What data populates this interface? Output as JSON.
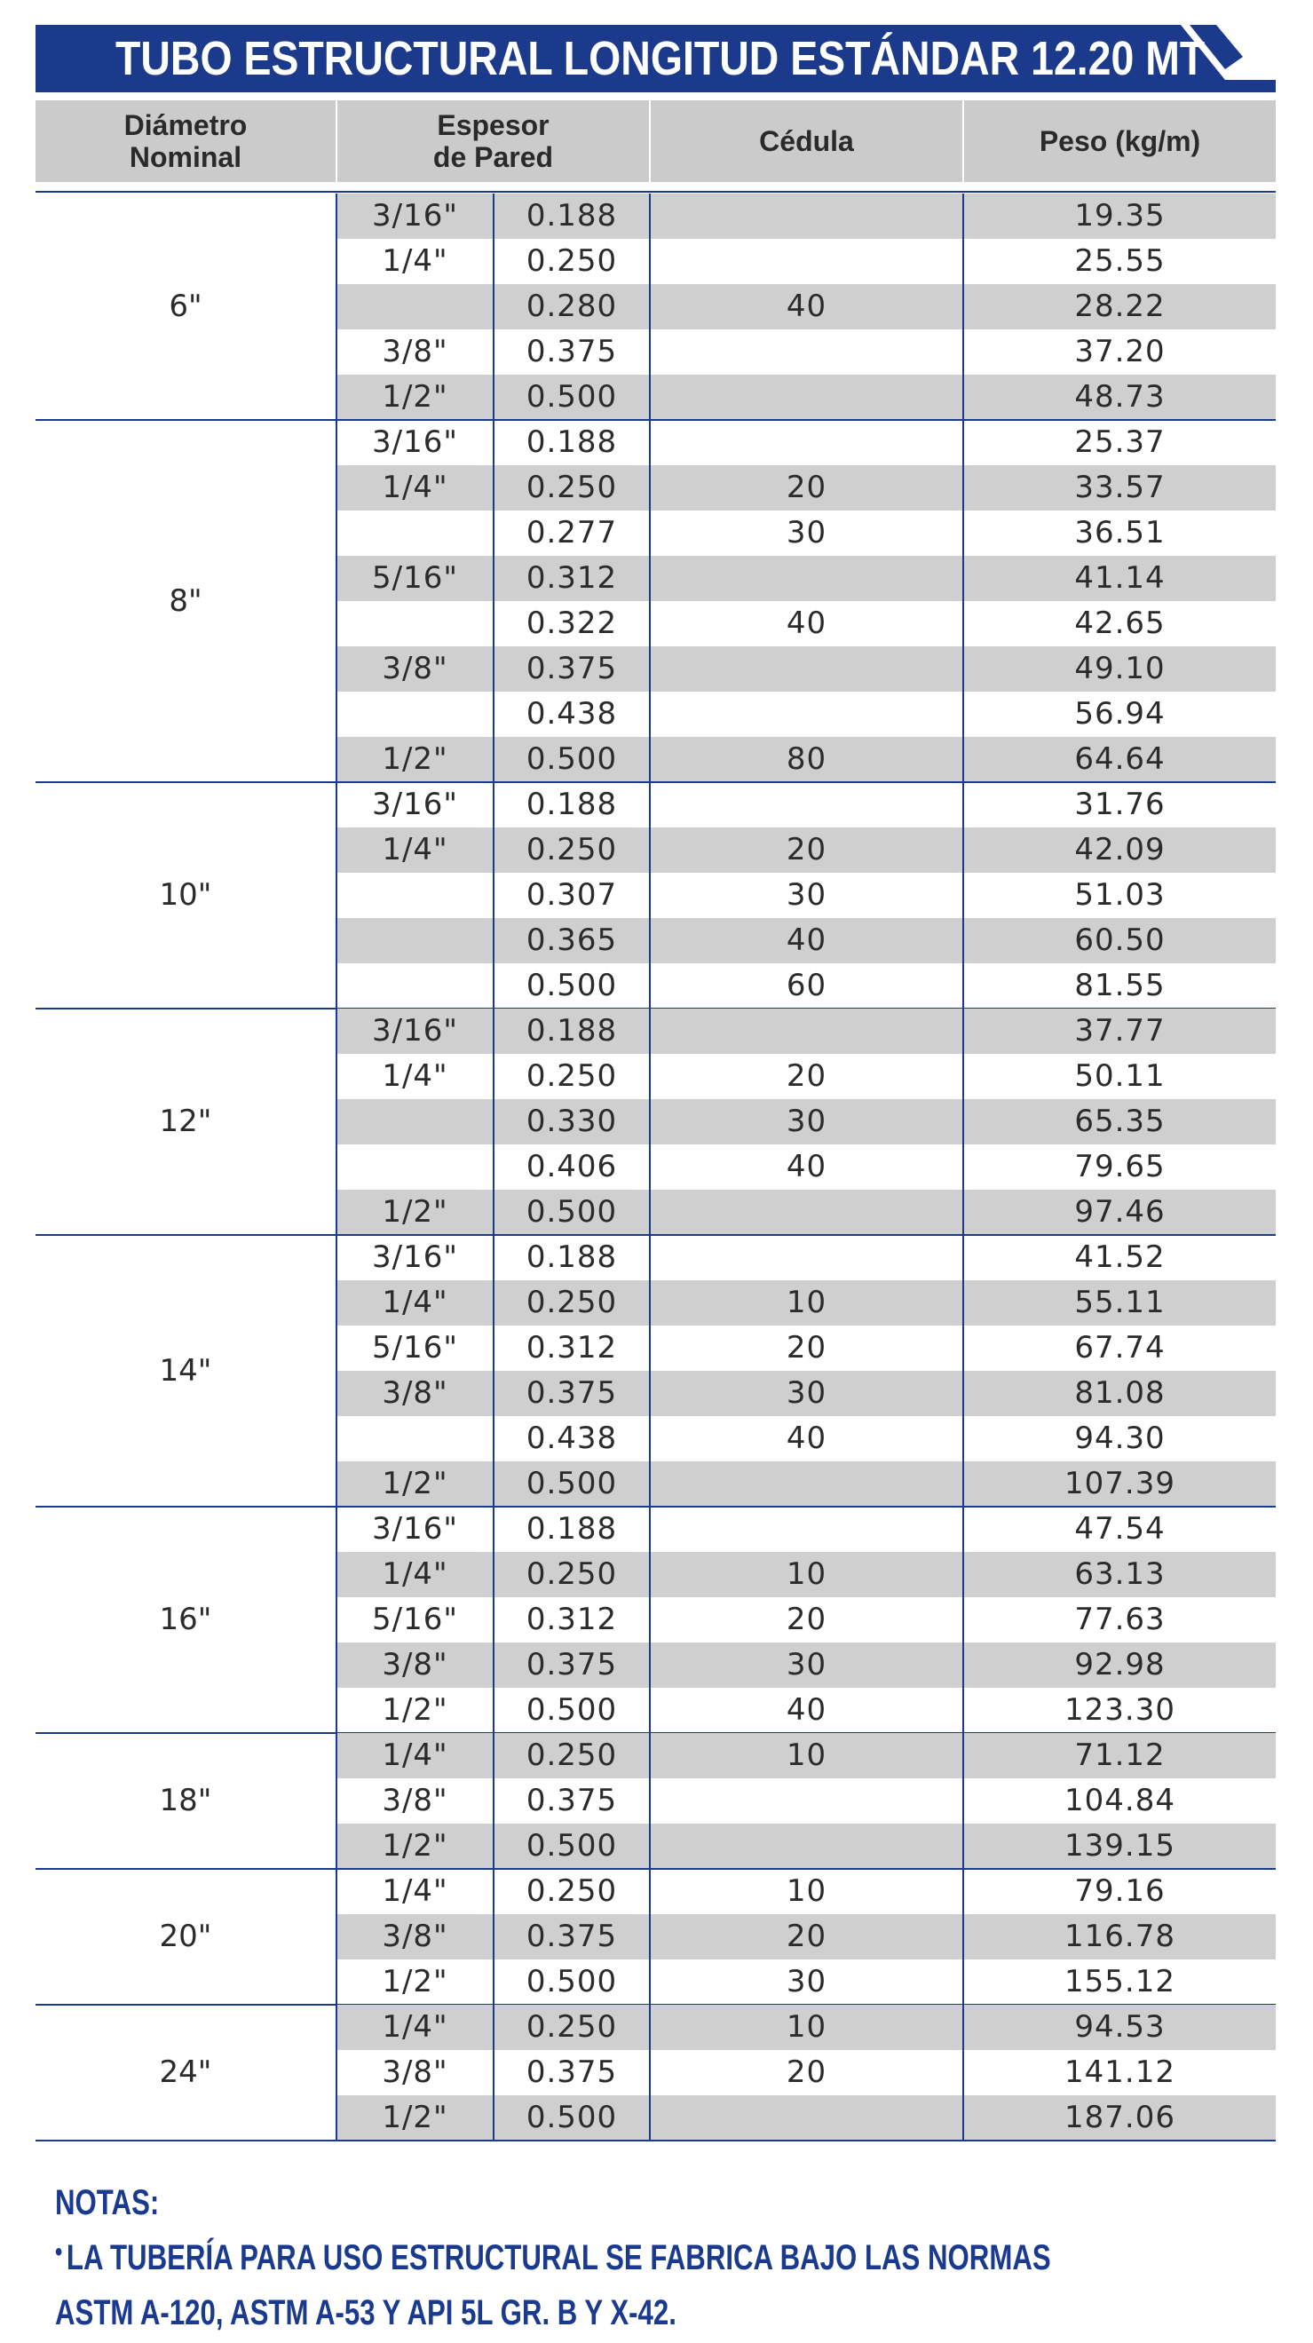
{
  "title": "TUBO ESTRUCTURAL LONGITUD ESTÁNDAR 12.20 MT",
  "colors": {
    "brand_blue": "#1b3a8c",
    "stripe_gray": "#cfcfcf",
    "header_gray": "#cbcbcb"
  },
  "columns": {
    "diametro_line1": "Diámetro",
    "diametro_line2": "Nominal",
    "espesor_line1": "Espesor",
    "espesor_line2": "de Pared",
    "cedula": "Cédula",
    "peso": "Peso (kg/m)"
  },
  "groups": [
    {
      "diameter": "6\"",
      "rows": [
        [
          "3/16\"",
          "0.188",
          "",
          "19.35"
        ],
        [
          "1/4\"",
          "0.250",
          "",
          "25.55"
        ],
        [
          "",
          "0.280",
          "40",
          "28.22"
        ],
        [
          "3/8\"",
          "0.375",
          "",
          "37.20"
        ],
        [
          "1/2\"",
          "0.500",
          "",
          "48.73"
        ]
      ]
    },
    {
      "diameter": "8\"",
      "rows": [
        [
          "3/16\"",
          "0.188",
          "",
          "25.37"
        ],
        [
          "1/4\"",
          "0.250",
          "20",
          "33.57"
        ],
        [
          "",
          "0.277",
          "30",
          "36.51"
        ],
        [
          "5/16\"",
          "0.312",
          "",
          "41.14"
        ],
        [
          "",
          "0.322",
          "40",
          "42.65"
        ],
        [
          "3/8\"",
          "0.375",
          "",
          "49.10"
        ],
        [
          "",
          "0.438",
          "",
          "56.94"
        ],
        [
          "1/2\"",
          "0.500",
          "80",
          "64.64"
        ]
      ]
    },
    {
      "diameter": "10\"",
      "rows": [
        [
          "3/16\"",
          "0.188",
          "",
          "31.76"
        ],
        [
          "1/4\"",
          "0.250",
          "20",
          "42.09"
        ],
        [
          "",
          "0.307",
          "30",
          "51.03"
        ],
        [
          "",
          "0.365",
          "40",
          "60.50"
        ],
        [
          "",
          "0.500",
          "60",
          "81.55"
        ]
      ]
    },
    {
      "diameter": "12\"",
      "rows": [
        [
          "3/16\"",
          "0.188",
          "",
          "37.77"
        ],
        [
          "1/4\"",
          "0.250",
          "20",
          "50.11"
        ],
        [
          "",
          "0.330",
          "30",
          "65.35"
        ],
        [
          "",
          "0.406",
          "40",
          "79.65"
        ],
        [
          "1/2\"",
          "0.500",
          "",
          "97.46"
        ]
      ]
    },
    {
      "diameter": "14\"",
      "rows": [
        [
          "3/16\"",
          "0.188",
          "",
          "41.52"
        ],
        [
          "1/4\"",
          "0.250",
          "10",
          "55.11"
        ],
        [
          "5/16\"",
          "0.312",
          "20",
          "67.74"
        ],
        [
          "3/8\"",
          "0.375",
          "30",
          "81.08"
        ],
        [
          "",
          "0.438",
          "40",
          "94.30"
        ],
        [
          "1/2\"",
          "0.500",
          "",
          "107.39"
        ]
      ]
    },
    {
      "diameter": "16\"",
      "rows": [
        [
          "3/16\"",
          "0.188",
          "",
          "47.54"
        ],
        [
          "1/4\"",
          "0.250",
          "10",
          "63.13"
        ],
        [
          "5/16\"",
          "0.312",
          "20",
          "77.63"
        ],
        [
          "3/8\"",
          "0.375",
          "30",
          "92.98"
        ],
        [
          "1/2\"",
          "0.500",
          "40",
          "123.30"
        ]
      ]
    },
    {
      "diameter": "18\"",
      "rows": [
        [
          "1/4\"",
          "0.250",
          "10",
          "71.12"
        ],
        [
          "3/8\"",
          "0.375",
          "",
          "104.84"
        ],
        [
          "1/2\"",
          "0.500",
          "",
          "139.15"
        ]
      ]
    },
    {
      "diameter": "20\"",
      "rows": [
        [
          "1/4\"",
          "0.250",
          "10",
          "79.16"
        ],
        [
          "3/8\"",
          "0.375",
          "20",
          "116.78"
        ],
        [
          "1/2\"",
          "0.500",
          "30",
          "155.12"
        ]
      ]
    },
    {
      "diameter": "24\"",
      "rows": [
        [
          "1/4\"",
          "0.250",
          "10",
          "94.53"
        ],
        [
          "3/8\"",
          "0.375",
          "20",
          "141.12"
        ],
        [
          "1/2\"",
          "0.500",
          "",
          "187.06"
        ]
      ]
    }
  ],
  "notes": {
    "heading": "NOTAS:",
    "bullet": "•",
    "line1": "LA TUBERÍA PARA USO ESTRUCTURAL SE FABRICA BAJO LAS NORMAS",
    "line2": "ASTM A-120, ASTM A-53 Y API 5L GR. B Y X-42."
  }
}
